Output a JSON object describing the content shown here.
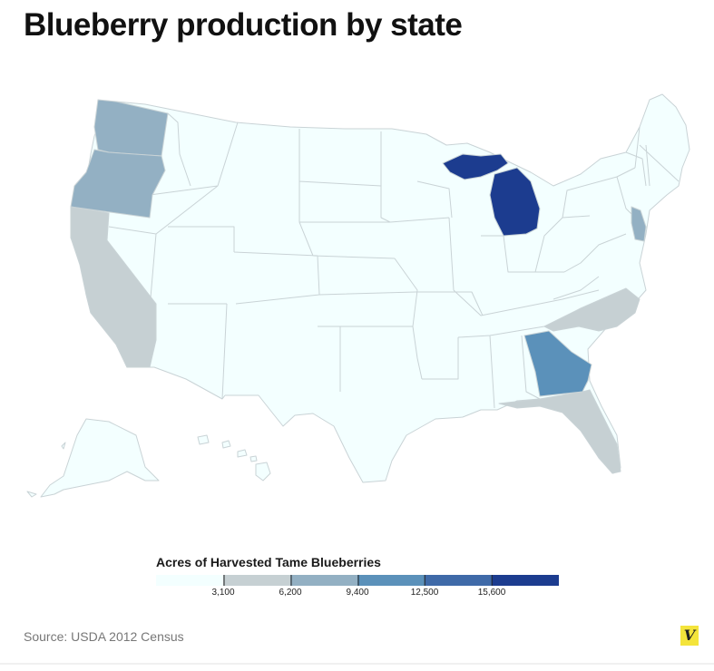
{
  "title": "Blueberry production by state",
  "legend": {
    "title": "Acres of Harvested Tame Blueberries",
    "colors": [
      "#f3ffff",
      "#c6d0d3",
      "#93b0c3",
      "#5b91ba",
      "#3f6aa8",
      "#1c3c8f"
    ],
    "ticks": [
      "3,100",
      "6,200",
      "9,400",
      "12,500",
      "15,600"
    ]
  },
  "source": "Source: USDA 2012 Census",
  "logo": "V",
  "states": {
    "michigan": 5,
    "georgia": 3,
    "new_jersey": 2,
    "washington": 2,
    "oregon": 2,
    "california": 1,
    "north_carolina": 1,
    "florida": 1
  }
}
